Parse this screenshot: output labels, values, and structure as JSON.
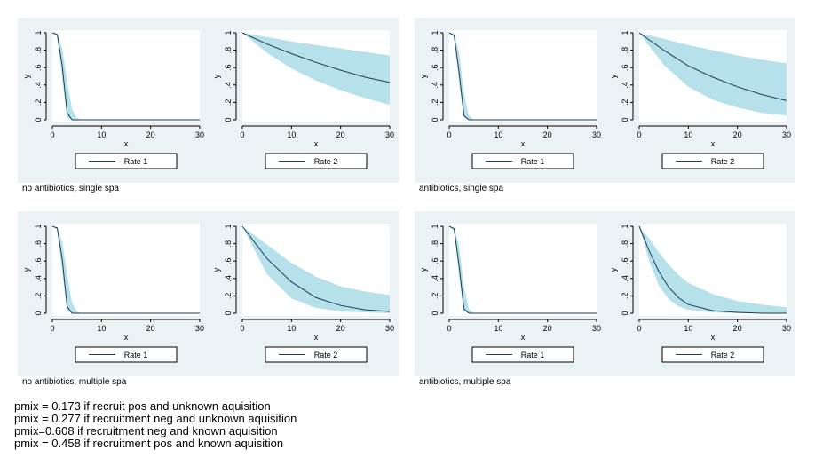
{
  "colors": {
    "panel_bg": "#eaf2f3",
    "plot_bg": "#ffffff",
    "band_fill": "#b6e0ea",
    "line": "#1b3d55",
    "axis": "#000000"
  },
  "chart_data": [
    {
      "type": "area",
      "panel_label": "no antibiotics, single spa",
      "subplots": [
        {
          "legend": "Rate 1",
          "xlabel": "x",
          "ylabel": "y",
          "xlim": [
            0,
            30
          ],
          "ylim": [
            0,
            1
          ],
          "xticks": [
            "0",
            "10",
            "20",
            "30"
          ],
          "yticks": [
            "0",
            ".2",
            ".4",
            ".6",
            ".8",
            "1"
          ],
          "x": [
            0,
            1,
            2,
            3,
            4,
            5,
            6,
            10,
            20,
            30
          ],
          "y": [
            1.0,
            0.98,
            0.62,
            0.08,
            0.0,
            0.0,
            0.0,
            0.0,
            0.0,
            0.0
          ],
          "lower": [
            1.0,
            0.96,
            0.48,
            0.03,
            0.0,
            0.0,
            0.0,
            0.0,
            0.0,
            0.0
          ],
          "upper": [
            1.0,
            0.99,
            0.82,
            0.45,
            0.12,
            0.02,
            0.0,
            0.0,
            0.0,
            0.0
          ]
        },
        {
          "legend": "Rate 2",
          "xlabel": "x",
          "ylabel": "y",
          "xlim": [
            0,
            30
          ],
          "ylim": [
            0,
            1
          ],
          "xticks": [
            "0",
            "10",
            "20",
            "30"
          ],
          "yticks": [
            "0",
            ".2",
            ".4",
            ".6",
            ".8",
            "1"
          ],
          "x": [
            0,
            5,
            10,
            15,
            20,
            25,
            30
          ],
          "y": [
            1.0,
            0.87,
            0.76,
            0.66,
            0.57,
            0.49,
            0.43
          ],
          "lower": [
            1.0,
            0.77,
            0.59,
            0.45,
            0.34,
            0.25,
            0.17
          ],
          "upper": [
            1.0,
            0.95,
            0.9,
            0.86,
            0.82,
            0.78,
            0.74
          ]
        }
      ]
    },
    {
      "type": "area",
      "panel_label": "antibiotics, single spa",
      "subplots": [
        {
          "legend": "Rate 1",
          "xlabel": "x",
          "ylabel": "y",
          "xlim": [
            0,
            30
          ],
          "ylim": [
            0,
            1
          ],
          "xticks": [
            "0",
            "10",
            "20",
            "30"
          ],
          "yticks": [
            "0",
            ".2",
            ".4",
            ".6",
            ".8",
            "1"
          ],
          "x": [
            0,
            1,
            2,
            3,
            4,
            5,
            6,
            10,
            20,
            30
          ],
          "y": [
            1.0,
            0.97,
            0.55,
            0.05,
            0.0,
            0.0,
            0.0,
            0.0,
            0.0,
            0.0
          ],
          "lower": [
            1.0,
            0.95,
            0.42,
            0.02,
            0.0,
            0.0,
            0.0,
            0.0,
            0.0,
            0.0
          ],
          "upper": [
            1.0,
            0.99,
            0.78,
            0.3,
            0.05,
            0.0,
            0.0,
            0.0,
            0.0,
            0.0
          ]
        },
        {
          "legend": "Rate 2",
          "xlabel": "x",
          "ylabel": "y",
          "xlim": [
            0,
            30
          ],
          "ylim": [
            0,
            1
          ],
          "xticks": [
            "0",
            "10",
            "20",
            "30"
          ],
          "yticks": [
            "0",
            ".2",
            ".4",
            ".6",
            ".8",
            "1"
          ],
          "x": [
            0,
            5,
            10,
            15,
            20,
            25,
            30
          ],
          "y": [
            1.0,
            0.8,
            0.62,
            0.49,
            0.38,
            0.29,
            0.22
          ],
          "lower": [
            1.0,
            0.63,
            0.38,
            0.23,
            0.14,
            0.08,
            0.05
          ],
          "upper": [
            1.0,
            0.93,
            0.86,
            0.8,
            0.74,
            0.69,
            0.65
          ]
        }
      ]
    },
    {
      "type": "area",
      "panel_label": "no antibiotics, multiple spa",
      "subplots": [
        {
          "legend": "Rate 1",
          "xlabel": "x",
          "ylabel": "y",
          "xlim": [
            0,
            30
          ],
          "ylim": [
            0,
            1
          ],
          "xticks": [
            "0",
            "10",
            "20",
            "30"
          ],
          "yticks": [
            "0",
            ".2",
            ".4",
            ".6",
            ".8",
            "1"
          ],
          "x": [
            0,
            1,
            2,
            3,
            4,
            5,
            6,
            10,
            20,
            30
          ],
          "y": [
            1.0,
            0.98,
            0.62,
            0.08,
            0.0,
            0.0,
            0.0,
            0.0,
            0.0,
            0.0
          ],
          "lower": [
            1.0,
            0.96,
            0.48,
            0.03,
            0.0,
            0.0,
            0.0,
            0.0,
            0.0,
            0.0
          ],
          "upper": [
            1.0,
            0.99,
            0.82,
            0.45,
            0.12,
            0.02,
            0.0,
            0.0,
            0.0,
            0.0
          ]
        },
        {
          "legend": "Rate 2",
          "xlabel": "x",
          "ylabel": "y",
          "xlim": [
            0,
            30
          ],
          "ylim": [
            0,
            1
          ],
          "xticks": [
            "0",
            "10",
            "20",
            "30"
          ],
          "yticks": [
            "0",
            ".2",
            ".4",
            ".6",
            ".8",
            "1"
          ],
          "x": [
            0,
            5,
            10,
            15,
            20,
            25,
            30
          ],
          "y": [
            1.0,
            0.63,
            0.36,
            0.18,
            0.09,
            0.04,
            0.02
          ],
          "lower": [
            1.0,
            0.45,
            0.17,
            0.06,
            0.02,
            0.01,
            0.0
          ],
          "upper": [
            1.0,
            0.79,
            0.58,
            0.42,
            0.31,
            0.25,
            0.21
          ]
        }
      ]
    },
    {
      "type": "area",
      "panel_label": "antibiotics, multiple spa",
      "subplots": [
        {
          "legend": "Rate 1",
          "xlabel": "x",
          "ylabel": "y",
          "xlim": [
            0,
            30
          ],
          "ylim": [
            0,
            1
          ],
          "xticks": [
            "0",
            "10",
            "20",
            "30"
          ],
          "yticks": [
            "0",
            ".2",
            ".4",
            ".6",
            ".8",
            "1"
          ],
          "x": [
            0,
            1,
            2,
            3,
            4,
            5,
            6,
            10,
            20,
            30
          ],
          "y": [
            1.0,
            0.97,
            0.55,
            0.05,
            0.0,
            0.0,
            0.0,
            0.0,
            0.0,
            0.0
          ],
          "lower": [
            1.0,
            0.95,
            0.42,
            0.02,
            0.0,
            0.0,
            0.0,
            0.0,
            0.0,
            0.0
          ],
          "upper": [
            1.0,
            0.99,
            0.78,
            0.3,
            0.05,
            0.0,
            0.0,
            0.0,
            0.0,
            0.0
          ]
        },
        {
          "legend": "Rate 2",
          "xlabel": "x",
          "ylabel": "y",
          "xlim": [
            0,
            30
          ],
          "ylim": [
            0,
            1
          ],
          "xticks": [
            "0",
            "10",
            "20",
            "30"
          ],
          "yticks": [
            "0",
            ".2",
            ".4",
            ".6",
            ".8",
            "1"
          ],
          "x": [
            0,
            2,
            4,
            6,
            8,
            10,
            15,
            20,
            25,
            30
          ],
          "y": [
            1.0,
            0.72,
            0.48,
            0.3,
            0.18,
            0.1,
            0.03,
            0.01,
            0.0,
            0.0
          ],
          "lower": [
            1.0,
            0.6,
            0.32,
            0.16,
            0.08,
            0.04,
            0.01,
            0.0,
            0.0,
            0.0
          ],
          "upper": [
            1.0,
            0.86,
            0.7,
            0.56,
            0.44,
            0.35,
            0.22,
            0.14,
            0.1,
            0.07
          ]
        }
      ]
    }
  ],
  "footnotes": [
    "pmix = 0.173 if recruit pos and unknown aquisition",
    "pmix = 0.277 if recruitment neg and unknown aquisition",
    "pmix=0.608 if recruitment neg and known aquisition",
    "pmix = 0.458 if recruitment pos and known aquisition"
  ]
}
